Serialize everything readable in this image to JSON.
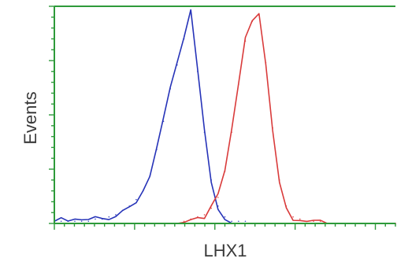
{
  "chart_data": {
    "type": "line",
    "title": "",
    "xlabel": "LHX1",
    "ylabel": "Events",
    "xlim": [
      0,
      1
    ],
    "ylim": [
      0,
      1
    ],
    "grid": false,
    "legend": "none",
    "x": [
      0.0,
      0.02,
      0.04,
      0.06,
      0.08,
      0.1,
      0.12,
      0.14,
      0.16,
      0.18,
      0.2,
      0.22,
      0.24,
      0.26,
      0.28,
      0.3,
      0.32,
      0.34,
      0.36,
      0.38,
      0.4,
      0.42,
      0.44,
      0.46,
      0.48,
      0.5,
      0.52,
      0.54,
      0.56,
      0.58,
      0.6,
      0.62,
      0.64,
      0.66,
      0.68,
      0.7,
      0.72,
      0.74,
      0.76,
      0.78,
      0.8,
      0.82,
      0.84,
      0.86,
      0.88,
      0.9,
      0.92,
      0.94,
      0.96,
      0.98,
      1.0
    ],
    "series": [
      {
        "values": [
          0.01,
          0.01,
          0.01,
          0.01,
          0.01,
          0.01,
          0.02,
          0.02,
          0.03,
          0.04,
          0.06,
          0.08,
          0.11,
          0.15,
          0.22,
          0.34,
          0.47,
          0.62,
          0.73,
          0.85,
          0.97,
          0.7,
          0.42,
          0.2,
          0.08,
          0.03,
          0.01,
          0.01,
          0.01,
          0.0,
          0.0,
          0.0,
          0.0,
          0.0,
          0.0,
          0.0,
          0.0,
          0.0,
          0.0,
          0.0,
          0.0,
          0.0,
          0.0,
          0.0,
          0.0,
          0.0,
          0.0,
          0.0,
          0.0,
          0.0,
          0.0
        ],
        "color": "#2633b8"
      },
      {
        "values": [
          0.0,
          0.0,
          0.0,
          0.0,
          0.0,
          0.0,
          0.0,
          0.0,
          0.0,
          0.0,
          0.0,
          0.0,
          0.0,
          0.0,
          0.0,
          0.0,
          0.0,
          0.0,
          0.0,
          0.01,
          0.02,
          0.03,
          0.04,
          0.07,
          0.12,
          0.24,
          0.42,
          0.64,
          0.84,
          0.93,
          0.96,
          0.74,
          0.44,
          0.2,
          0.08,
          0.03,
          0.02,
          0.01,
          0.01,
          0.01,
          0.0,
          0.0,
          0.0,
          0.0,
          0.0,
          0.0,
          0.0,
          0.0,
          0.0,
          0.0,
          0.0
        ],
        "color": "#d93b3b"
      }
    ]
  },
  "colors": {
    "frame": "#2e9a3a",
    "text": "#3a3a3a"
  }
}
